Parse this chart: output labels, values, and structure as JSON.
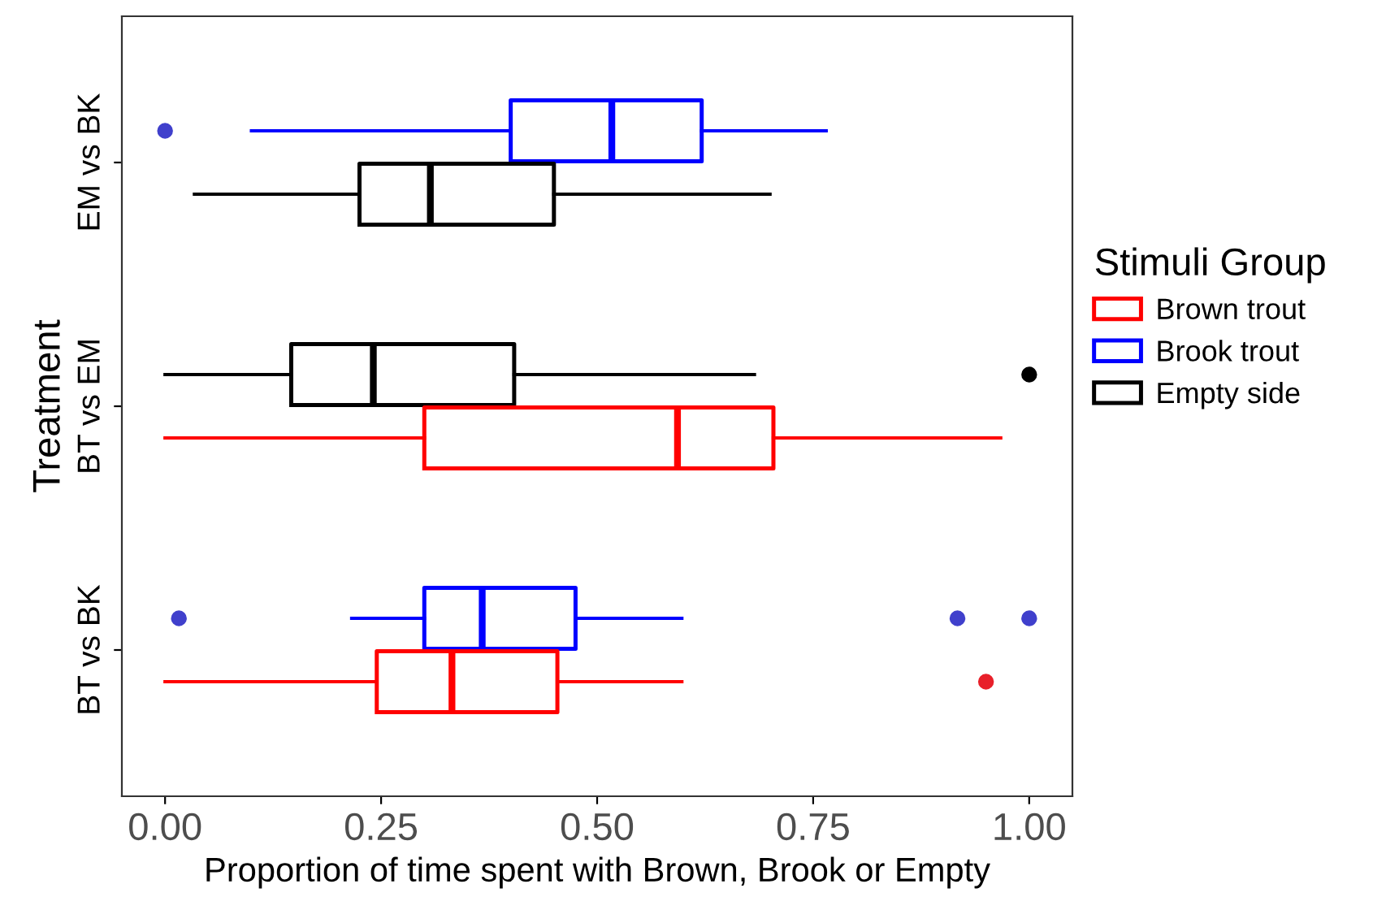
{
  "chart_data": {
    "type": "box",
    "orientation": "horizontal",
    "xlabel": "Proportion of time spent with Brown, Brook or Empty",
    "ylabel": "Treatment",
    "legend_title": "Stimuli Group",
    "legend": "right",
    "categories": [
      "EM vs BK",
      "BT vs EM",
      "BT vs BK"
    ],
    "xlim": [
      -0.05,
      1.05
    ],
    "xticks": [
      {
        "value": 0,
        "label": "0.00"
      },
      {
        "value": 0.25,
        "label": "0.25"
      },
      {
        "value": 0.5,
        "label": "0.50"
      },
      {
        "value": 0.75,
        "label": "0.75"
      },
      {
        "value": 1,
        "label": "1.00"
      }
    ],
    "grid": false,
    "series": [
      {
        "name": "Brown trout",
        "color": "#ff0000",
        "boxes": [
          null,
          {
            "low": 0,
            "q1": 0.3,
            "median": 0.593,
            "q3": 0.704,
            "high": 0.967
          },
          {
            "low": 0,
            "q1": 0.245,
            "median": 0.332,
            "q3": 0.454,
            "high": 0.598,
            "outliers": [
              0.95
            ]
          }
        ]
      },
      {
        "name": "Brook trout",
        "color": "#0000ff",
        "boxes": [
          {
            "low": 0.1,
            "q1": 0.4,
            "median": 0.517,
            "q3": 0.621,
            "high": 0.765,
            "outliers": [
              0
            ]
          },
          null,
          {
            "low": 0.216,
            "q1": 0.3,
            "median": 0.367,
            "q3": 0.475,
            "high": 0.598,
            "outliers": [
              0.016,
              0.917,
              1.0
            ]
          }
        ]
      },
      {
        "name": "Empty side",
        "color": "#000000",
        "boxes": [
          {
            "low": 0.034,
            "q1": 0.225,
            "median": 0.307,
            "q3": 0.45,
            "high": 0.7
          },
          {
            "low": 0,
            "q1": 0.146,
            "median": 0.241,
            "q3": 0.404,
            "high": 0.682,
            "outliers": [
              1.0
            ]
          },
          null
        ]
      }
    ]
  }
}
